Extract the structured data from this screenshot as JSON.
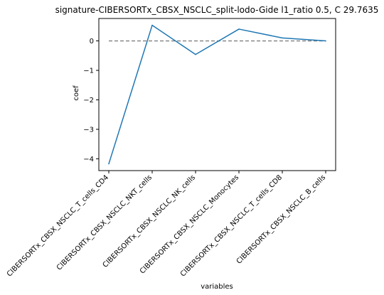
{
  "chart_data": {
    "type": "line",
    "title": "signature-CIBERSORTx_CBSX_NSCLC_split-lodo-Gide l1_ratio 0.5, C 29.7635",
    "xlabel": "variables",
    "ylabel": "coef",
    "categories": [
      "CIBERSORTx_CBSX_NSCLC_T_cells_CD4",
      "CIBERSORTx_CBSX_NSCLC_NKT_cells",
      "CIBERSORTx_CBSX_NSCLC_NK_cells",
      "CIBERSORTx_CBSX_NSCLC_Monocytes",
      "CIBERSORTx_CBSX_NSCLC_T_cells_CD8",
      "CIBERSORTx_CBSX_NSCLC_B_cells"
    ],
    "series": [
      {
        "values": [
          -4.17,
          0.53,
          -0.46,
          0.4,
          0.1,
          0.0
        ],
        "color": "#1f77b4"
      }
    ],
    "reference_line": {
      "y": 0,
      "style": "dashed",
      "color": "#808080"
    },
    "yticks": [
      0,
      -1,
      -2,
      -3,
      -4
    ],
    "ytick_labels": [
      "0",
      "−1",
      "−2",
      "−3",
      "−4"
    ],
    "ylim": [
      -4.4,
      0.76
    ],
    "grid": false
  }
}
